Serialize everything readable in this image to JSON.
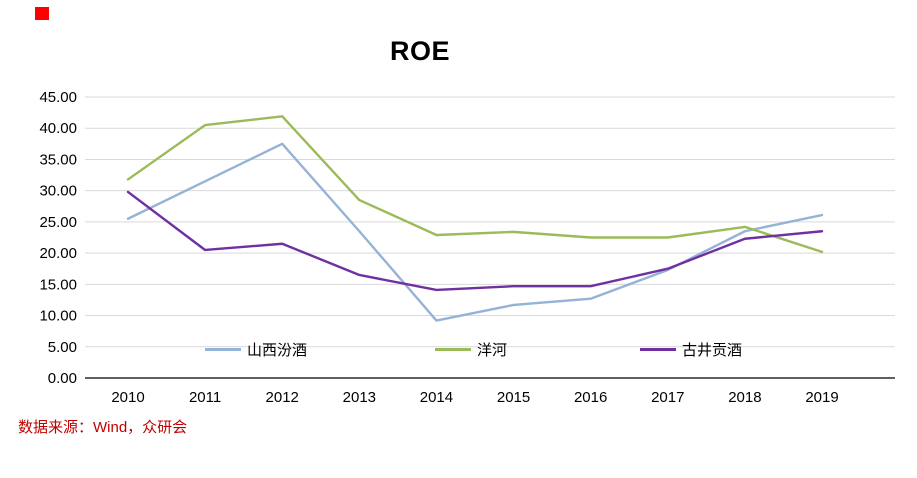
{
  "marker": {
    "color": "#FF0000"
  },
  "footer": {
    "source_text": "数据来源：Wind，众研会",
    "source_color": "#C00000"
  },
  "style_colors": {
    "grid": "#D9D9D9",
    "axis": "#000000",
    "tick_text": "#000000"
  },
  "chart_data": {
    "type": "line",
    "title": "ROE",
    "x": [
      "2010",
      "2011",
      "2012",
      "2013",
      "2014",
      "2015",
      "2016",
      "2017",
      "2018",
      "2019"
    ],
    "series": [
      {
        "name": "山西汾酒",
        "color": "#95B3D7",
        "values": [
          25.5,
          31.5,
          37.5,
          23.5,
          9.2,
          11.7,
          12.7,
          17.3,
          23.5,
          26.1
        ]
      },
      {
        "name": "洋河",
        "color": "#9BBB59",
        "values": [
          31.8,
          40.5,
          41.9,
          28.5,
          22.9,
          23.4,
          22.5,
          22.5,
          24.2,
          20.2
        ]
      },
      {
        "name": "古井贡酒",
        "color": "#7030A0",
        "values": [
          29.8,
          20.5,
          21.5,
          16.5,
          14.1,
          14.7,
          14.7,
          17.5,
          22.3,
          23.5
        ]
      }
    ],
    "ylim": [
      0,
      45
    ],
    "ytick_step": 5,
    "ytick_decimals": 2,
    "grid": true,
    "legend_position": "bottom-inside",
    "legend_x_positions": [
      205,
      435,
      640
    ]
  }
}
